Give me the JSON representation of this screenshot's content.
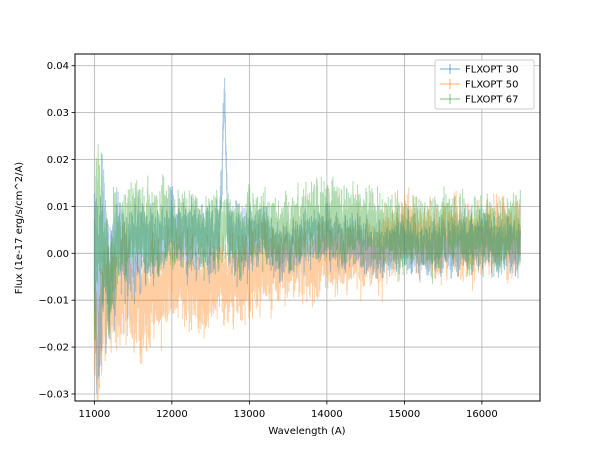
{
  "chart_data": {
    "type": "line",
    "title": "",
    "xlabel": "Wavelength (A)",
    "ylabel": "Flux (1e-17 erg/s/cm^2/A)",
    "xlim": [
      10750,
      16750
    ],
    "ylim": [
      -0.0315,
      0.0425
    ],
    "x_ticks": [
      11000,
      12000,
      13000,
      14000,
      15000,
      16000
    ],
    "x_tick_labels": [
      "11000",
      "12000",
      "13000",
      "14000",
      "15000",
      "16000"
    ],
    "y_ticks": [
      -0.03,
      -0.02,
      -0.01,
      0.0,
      0.01,
      0.02,
      0.03,
      0.04
    ],
    "y_tick_labels": [
      "−0.03",
      "−0.02",
      "−0.01",
      "0.00",
      "0.01",
      "0.02",
      "0.03",
      "0.04"
    ],
    "grid": true,
    "legend_position": "top-right",
    "style": "noisy spectra with error bars, semi-transparent",
    "series": [
      {
        "name": "FLXOPT 30",
        "color": "#1f77b4",
        "x": [
          11000,
          11050,
          11100,
          11200,
          11300,
          11400,
          11500,
          11600,
          11700,
          11800,
          11900,
          12000,
          12100,
          12200,
          12300,
          12400,
          12500,
          12600,
          12650,
          12680,
          12720,
          12800,
          12900,
          13000,
          13200,
          13400,
          13600,
          13800,
          14000,
          14200,
          14400,
          14600,
          14800,
          15000,
          15200,
          15400,
          15600,
          15800,
          16000,
          16200,
          16400,
          16500
        ],
        "y": [
          0.0,
          -0.012,
          0.005,
          -0.008,
          0.004,
          -0.002,
          0.003,
          0.001,
          0.004,
          0.0,
          0.003,
          0.005,
          0.004,
          0.003,
          0.004,
          0.003,
          0.002,
          0.004,
          0.018,
          0.036,
          0.006,
          0.002,
          0.003,
          0.003,
          0.004,
          0.0,
          0.002,
          0.003,
          0.004,
          0.002,
          0.003,
          0.0,
          0.001,
          0.002,
          0.0,
          0.002,
          0.001,
          0.002,
          0.003,
          0.001,
          0.002,
          0.0
        ],
        "err": [
          0.012,
          0.012,
          0.011,
          0.007,
          0.006,
          0.005,
          0.005,
          0.005,
          0.004,
          0.004,
          0.004,
          0.004,
          0.004,
          0.004,
          0.004,
          0.004,
          0.004,
          0.004,
          0.004,
          0.003,
          0.004,
          0.004,
          0.004,
          0.004,
          0.003,
          0.003,
          0.003,
          0.003,
          0.003,
          0.003,
          0.003,
          0.003,
          0.003,
          0.003,
          0.003,
          0.003,
          0.003,
          0.003,
          0.003,
          0.003,
          0.003,
          0.003
        ]
      },
      {
        "name": "FLXOPT 50",
        "color": "#ff7f0e",
        "x": [
          11000,
          11050,
          11100,
          11200,
          11300,
          11400,
          11500,
          11600,
          11700,
          11800,
          11900,
          12000,
          12100,
          12200,
          12300,
          12400,
          12500,
          12600,
          12700,
          12800,
          12900,
          13000,
          13200,
          13400,
          13600,
          13800,
          14000,
          14200,
          14400,
          14600,
          14800,
          15000,
          15200,
          15400,
          15600,
          15800,
          16000,
          16200,
          16400,
          16500
        ],
        "y": [
          -0.018,
          -0.022,
          -0.01,
          -0.008,
          -0.01,
          -0.006,
          -0.01,
          -0.012,
          -0.009,
          -0.008,
          -0.007,
          -0.004,
          -0.005,
          -0.006,
          -0.007,
          -0.008,
          -0.006,
          -0.005,
          -0.006,
          -0.007,
          -0.006,
          -0.004,
          -0.003,
          -0.002,
          -0.002,
          -0.003,
          0.0,
          -0.001,
          0.001,
          -0.001,
          0.002,
          0.004,
          0.003,
          0.002,
          0.004,
          0.002,
          0.003,
          0.004,
          0.002,
          0.004
        ],
        "err": [
          0.008,
          0.008,
          0.007,
          0.006,
          0.006,
          0.006,
          0.006,
          0.006,
          0.006,
          0.006,
          0.005,
          0.005,
          0.005,
          0.005,
          0.005,
          0.005,
          0.005,
          0.005,
          0.005,
          0.005,
          0.005,
          0.005,
          0.005,
          0.004,
          0.004,
          0.004,
          0.004,
          0.004,
          0.004,
          0.004,
          0.004,
          0.004,
          0.004,
          0.004,
          0.004,
          0.004,
          0.004,
          0.004,
          0.004,
          0.004
        ]
      },
      {
        "name": "FLXOPT 67",
        "color": "#2ca02c",
        "x": [
          11000,
          11050,
          11100,
          11200,
          11300,
          11400,
          11500,
          11600,
          11700,
          11800,
          11900,
          12000,
          12100,
          12200,
          12300,
          12400,
          12500,
          12600,
          12700,
          12800,
          12900,
          13000,
          13200,
          13400,
          13600,
          13800,
          14000,
          14200,
          14400,
          14600,
          14800,
          15000,
          15200,
          15400,
          15600,
          15800,
          16000,
          16200,
          16400,
          16500
        ],
        "y": [
          -0.005,
          0.012,
          0.0,
          -0.005,
          0.004,
          0.003,
          0.005,
          0.004,
          0.006,
          0.005,
          0.006,
          0.004,
          0.006,
          0.005,
          0.006,
          0.004,
          0.005,
          0.004,
          0.006,
          0.005,
          0.004,
          0.005,
          0.006,
          0.004,
          0.006,
          0.007,
          0.008,
          0.006,
          0.007,
          0.006,
          0.005,
          0.004,
          0.005,
          0.004,
          0.006,
          0.003,
          0.004,
          0.003,
          0.005,
          0.004
        ],
        "err": [
          0.01,
          0.01,
          0.008,
          0.006,
          0.005,
          0.005,
          0.005,
          0.005,
          0.005,
          0.005,
          0.005,
          0.004,
          0.004,
          0.004,
          0.004,
          0.004,
          0.004,
          0.004,
          0.004,
          0.004,
          0.004,
          0.004,
          0.004,
          0.004,
          0.004,
          0.004,
          0.004,
          0.004,
          0.004,
          0.004,
          0.004,
          0.004,
          0.004,
          0.004,
          0.004,
          0.004,
          0.004,
          0.004,
          0.004,
          0.004
        ]
      }
    ]
  }
}
